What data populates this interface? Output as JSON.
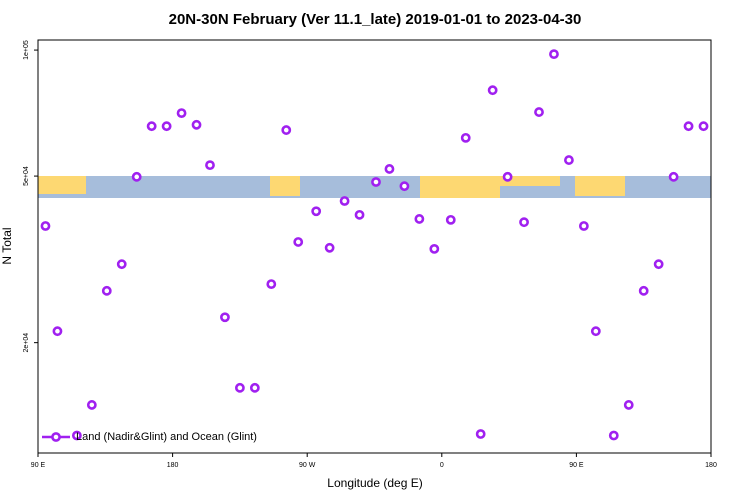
{
  "chart_data": {
    "type": "scatter",
    "title": "20N-30N February (Ver 11.1_late)   2019-01-01 to 2023-04-30",
    "x_label": "Longitude (deg E)",
    "y_label": "N Total",
    "xlim": [
      90,
      540
    ],
    "xticks": [
      {
        "value": 90,
        "label": "90 E"
      },
      {
        "value": 180,
        "label": "180"
      },
      {
        "value": 270,
        "label": "90 W"
      },
      {
        "value": 360,
        "label": "0"
      },
      {
        "value": 450,
        "label": "90 E"
      },
      {
        "value": 540,
        "label": "180"
      }
    ],
    "ylim": [
      10900,
      105700
    ],
    "y_log": true,
    "yticks": [
      {
        "value": 100000,
        "label": "1e+05"
      },
      {
        "value": 50000,
        "label": "5e+04"
      },
      {
        "value": 20000,
        "label": "2e+04"
      }
    ],
    "legend": "bottom left",
    "grid": false,
    "series": [
      {
        "name": "Land (Nadir&Glint) and Ocean (Glint)",
        "color": "#a020f0",
        "x": [
          95,
          103,
          116,
          126,
          136,
          146,
          156,
          166,
          176,
          186,
          196,
          205,
          215,
          225,
          235,
          246,
          256,
          264,
          276,
          285,
          295,
          305,
          316,
          325,
          335,
          345,
          355,
          366,
          376,
          386,
          394,
          404,
          415,
          425,
          435,
          445,
          455,
          463,
          475,
          485,
          495,
          505,
          515,
          525,
          535
        ],
        "values": [
          38000,
          21300,
          12000,
          14200,
          26600,
          30800,
          49800,
          65800,
          65800,
          70700,
          66300,
          53100,
          23000,
          15600,
          15600,
          27600,
          64400,
          34800,
          41200,
          33700,
          43600,
          40400,
          48400,
          52000,
          47300,
          39500,
          33500,
          39300,
          61700,
          12100,
          80200,
          49800,
          38800,
          71100,
          97800,
          54600,
          38000,
          21300,
          12000,
          14200,
          26600,
          30800,
          49800,
          65800,
          65800
        ]
      }
    ]
  }
}
